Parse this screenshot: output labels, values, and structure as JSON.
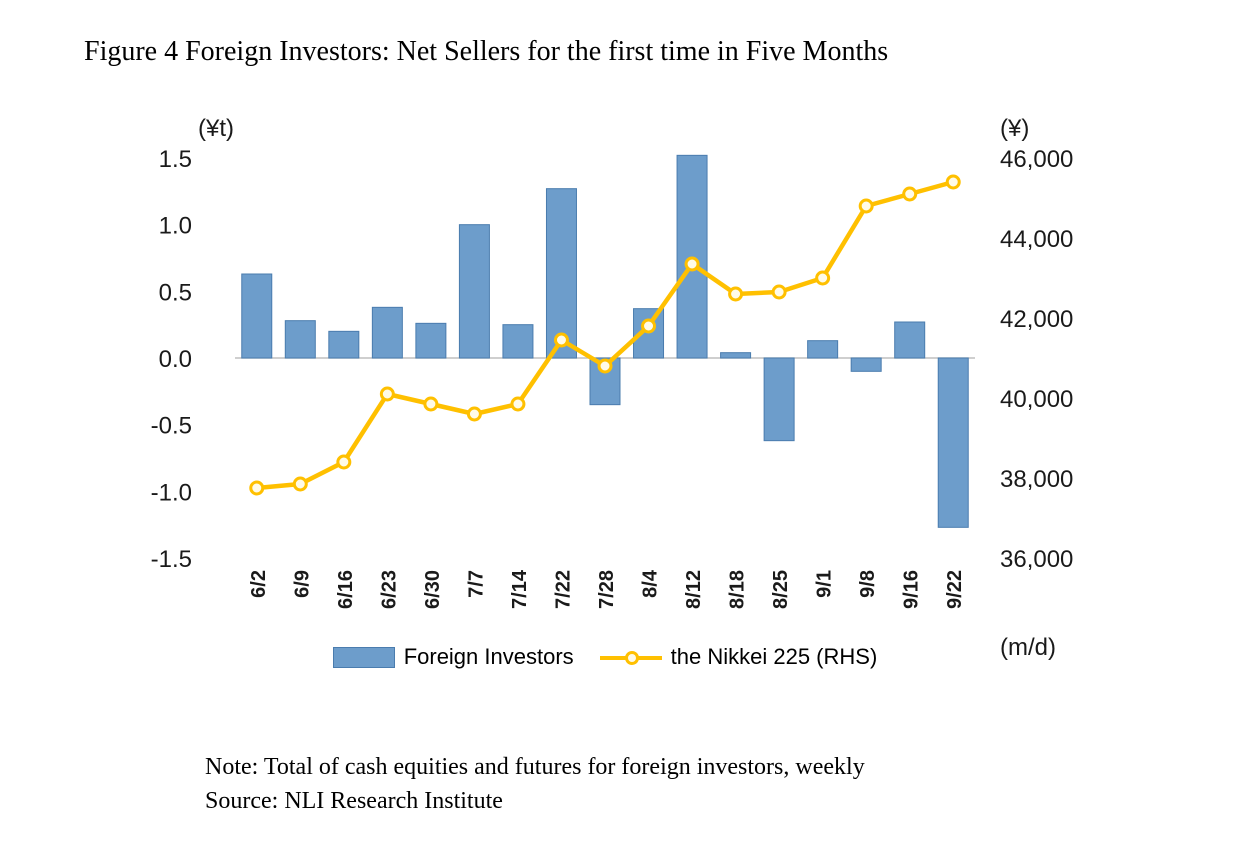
{
  "title": "Figure 4 Foreign Investors: Net Sellers for the first time in Five Months",
  "note": "Note: Total of cash equities and futures for foreign investors, weekly",
  "source": "Source: NLI Research Institute",
  "chart_data": {
    "type": "bar",
    "subtype": "bar-line-combo",
    "categories": [
      "6/2",
      "6/9",
      "6/16",
      "6/23",
      "6/30",
      "7/7",
      "7/14",
      "7/22",
      "7/28",
      "8/4",
      "8/12",
      "8/18",
      "8/25",
      "9/1",
      "9/8",
      "9/16",
      "9/22"
    ],
    "series": [
      {
        "name": "Foreign Investors",
        "type": "bar",
        "axis": "left",
        "values": [
          0.63,
          0.28,
          0.2,
          0.38,
          0.26,
          1.0,
          0.25,
          1.27,
          -0.35,
          0.37,
          1.52,
          0.04,
          -0.62,
          0.13,
          -0.1,
          0.27,
          -1.27
        ]
      },
      {
        "name": "the Nikkei 225 (RHS)",
        "type": "line",
        "axis": "right",
        "values": [
          37750,
          37850,
          38400,
          40100,
          39850,
          39600,
          39850,
          41450,
          40800,
          41800,
          43350,
          42600,
          42650,
          43000,
          44800,
          45100,
          45400
        ]
      }
    ],
    "left_axis": {
      "unit": "(¥t)",
      "min": -1.5,
      "max": 1.5,
      "step": 0.5,
      "ticks": [
        "1.5",
        "1.0",
        "0.5",
        "0.0",
        "-0.5",
        "-1.0",
        "-1.5"
      ]
    },
    "right_axis": {
      "unit": "(¥)",
      "min": 36000,
      "max": 46000,
      "step": 2000,
      "ticks": [
        "46,000",
        "44,000",
        "42,000",
        "40,000",
        "38,000",
        "36,000"
      ]
    },
    "x_axis_unit": "(m/d)",
    "legend": [
      {
        "label": "Foreign Investors",
        "type": "bar"
      },
      {
        "label": "the Nikkei 225 (RHS)",
        "type": "line"
      }
    ],
    "legend_position": "bottom",
    "grid": "zero-line-only",
    "colors": {
      "bar_fill": "#6d9dcb",
      "bar_stroke": "#4a7cae",
      "line": "#ffc000",
      "marker_fill": "#fffbe8",
      "axis_text": "#1a1a1a",
      "zero_line": "#bfbfbf"
    }
  }
}
